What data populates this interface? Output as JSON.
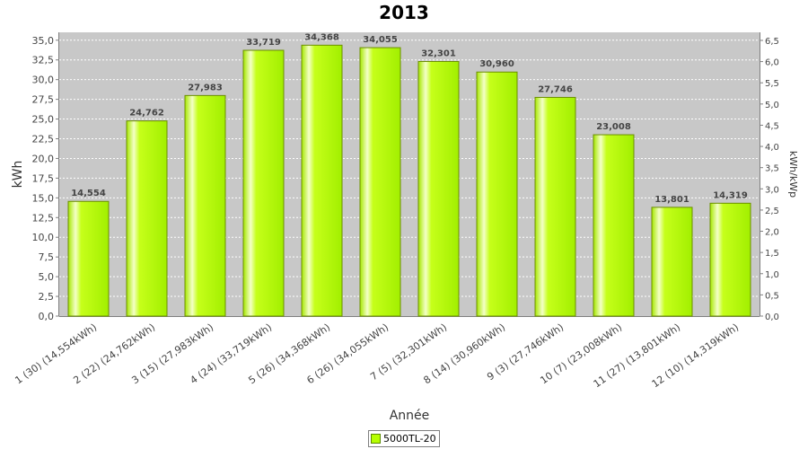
{
  "chart_data": {
    "type": "bar",
    "title": "2013",
    "xlabel": "Année",
    "ylabel": "kWh",
    "y2label": "kWh/kWp",
    "ylim": [
      0,
      36.0
    ],
    "y2lim": [
      0,
      6.69
    ],
    "yticks": [
      "0,0",
      "2,5",
      "5,0",
      "7,5",
      "10,0",
      "12,5",
      "15,0",
      "17,5",
      "20,0",
      "22,5",
      "25,0",
      "27,5",
      "30,0",
      "32,5",
      "35,0"
    ],
    "y2ticks": [
      "0,0",
      "0,5",
      "1,0",
      "1,5",
      "2,0",
      "2,5",
      "3,0",
      "3,5",
      "4,0",
      "4,5",
      "5,0",
      "5,5",
      "6,0",
      "6,5"
    ],
    "categories": [
      "1 (30)  (14,554kWh)",
      "2 (22)  (24,762kWh)",
      "3 (15)  (27,983kWh)",
      "4 (24)  (33,719kWh)",
      "5 (26)  (34,368kWh)",
      "6 (26)  (34,055kWh)",
      "7 (5)  (32,301kWh)",
      "8 (14)  (30,960kWh)",
      "9 (3)  (27,746kWh)",
      "10 (7)  (23,008kWh)",
      "11 (27)  (13,801kWh)",
      "12 (10)  (14,319kWh)"
    ],
    "series": [
      {
        "name": "5000TL-20",
        "color": "#b6ff00",
        "values": [
          14.554,
          24.762,
          27.983,
          33.719,
          34.368,
          34.055,
          32.301,
          30.96,
          27.746,
          23.008,
          13.801,
          14.319
        ],
        "labels": [
          "14,554",
          "24,762",
          "27,983",
          "33,719",
          "34,368",
          "34,055",
          "32,301",
          "30,960",
          "27,746",
          "23,008",
          "13,801",
          "14,319"
        ]
      }
    ],
    "grid": true,
    "legend_position": "bottom-center",
    "plot_background": "#c8c8c8"
  }
}
